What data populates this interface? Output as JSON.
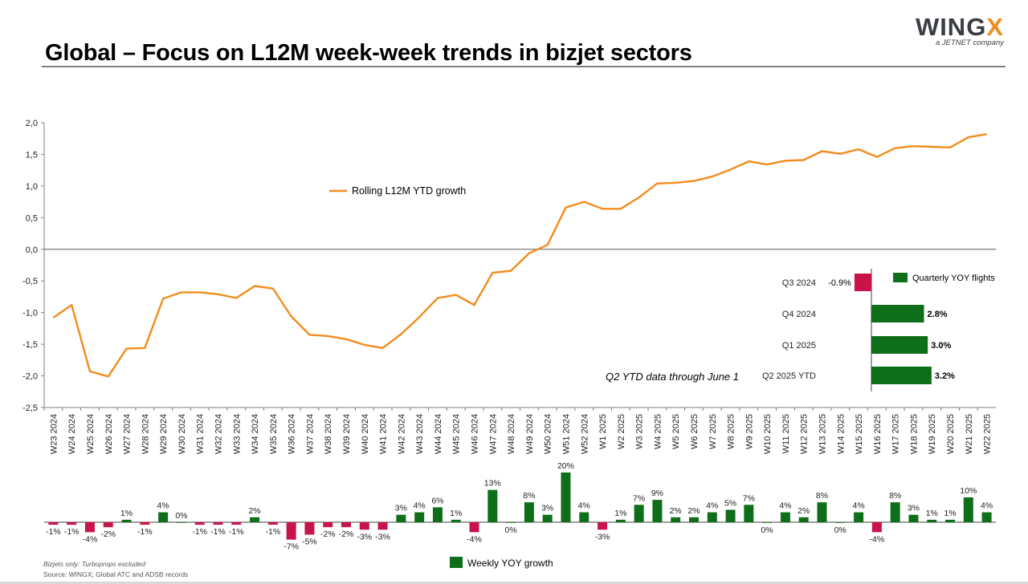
{
  "header": {
    "title": "Global – Focus on L12M week-week trends in bizjet sectors",
    "logo_main": "WINGX",
    "logo_sub": "a JETNET company"
  },
  "footer": {
    "note": "Bizjets only: Turboprops excluded",
    "source": "Source: WINGX; Global ATC and ADSB records"
  },
  "colors": {
    "line": "#f28c1c",
    "positive": "#0f6e1a",
    "negative": "#c8144a",
    "axis": "#7f7f7f"
  },
  "chart_data": [
    {
      "type": "line",
      "legend": "Rolling L12M YTD growth",
      "ylim": [
        -2.5,
        2.0
      ],
      "y_ticks": [
        "2,0",
        "1,5",
        "1,0",
        "0,5",
        "0,0",
        "-0,5",
        "-1,0",
        "-1,5",
        "-2,0",
        "-2,5"
      ],
      "categories": [
        "W23 2024",
        "W24 2024",
        "W25 2024",
        "W26 2024",
        "W27 2024",
        "W28 2024",
        "W29 2024",
        "W30 2024",
        "W31 2024",
        "W32 2024",
        "W33 2024",
        "W34 2024",
        "W35 2024",
        "W36 2024",
        "W37 2024",
        "W38 2024",
        "W39 2024",
        "W40 2024",
        "W41 2024",
        "W42 2024",
        "W43 2024",
        "W44 2024",
        "W45 2024",
        "W46 2024",
        "W47 2024",
        "W48 2024",
        "W49 2024",
        "W50 2024",
        "W51 2024",
        "W52 2024",
        "W1 2025",
        "W2 2025",
        "W3 2025",
        "W4 2025",
        "W5 2025",
        "W6 2025",
        "W7 2025",
        "W8 2025",
        "W9 2025",
        "W10 2025",
        "W11 2025",
        "W12 2025",
        "W13 2025",
        "W14 2025",
        "W15 2025",
        "W16 2025",
        "W17 2025",
        "W18 2025",
        "W19 2025",
        "W20 2025",
        "W21 2025",
        "W22 2025"
      ],
      "values": [
        -1.08,
        -0.88,
        -1.93,
        -2.01,
        -1.57,
        -1.56,
        -0.78,
        -0.68,
        -0.68,
        -0.71,
        -0.77,
        -0.58,
        -0.62,
        -1.06,
        -1.35,
        -1.37,
        -1.42,
        -1.51,
        -1.56,
        -1.34,
        -1.07,
        -0.77,
        -0.72,
        -0.88,
        -0.37,
        -0.34,
        -0.06,
        0.07,
        0.66,
        0.75,
        0.64,
        0.64,
        0.82,
        1.04,
        1.05,
        1.08,
        1.15,
        1.26,
        1.39,
        1.34,
        1.4,
        1.41,
        1.55,
        1.51,
        1.58,
        1.46,
        1.6,
        1.63,
        1.62,
        1.61,
        1.77,
        1.82
      ]
    },
    {
      "type": "bar",
      "legend": "Weekly YOY growth",
      "categories": [
        "W23 2024",
        "W24 2024",
        "W25 2024",
        "W26 2024",
        "W27 2024",
        "W28 2024",
        "W29 2024",
        "W30 2024",
        "W31 2024",
        "W32 2024",
        "W33 2024",
        "W34 2024",
        "W35 2024",
        "W36 2024",
        "W37 2024",
        "W38 2024",
        "W39 2024",
        "W40 2024",
        "W41 2024",
        "W42 2024",
        "W43 2024",
        "W44 2024",
        "W45 2024",
        "W46 2024",
        "W47 2024",
        "W48 2024",
        "W49 2024",
        "W50 2024",
        "W51 2024",
        "W52 2024",
        "W1 2025",
        "W2 2025",
        "W3 2025",
        "W4 2025",
        "W5 2025",
        "W6 2025",
        "W7 2025",
        "W8 2025",
        "W9 2025",
        "W10 2025",
        "W11 2025",
        "W12 2025",
        "W13 2025",
        "W14 2025",
        "W15 2025",
        "W16 2025",
        "W17 2025",
        "W18 2025",
        "W19 2025",
        "W20 2025",
        "W21 2025",
        "W22 2025"
      ],
      "values": [
        -1,
        -1,
        -4,
        -2,
        1,
        -1,
        4,
        0,
        -1,
        -1,
        -1,
        2,
        -1,
        -7,
        -5,
        -2,
        -2,
        -3,
        -3,
        3,
        4,
        6,
        1,
        -4,
        13,
        0,
        8,
        3,
        20,
        4,
        -3,
        1,
        7,
        9,
        2,
        2,
        4,
        5,
        7,
        0,
        4,
        2,
        8,
        0,
        4,
        -4,
        8,
        3,
        1,
        1,
        10,
        4
      ],
      "labels": [
        "-1%",
        "-1%",
        "-4%",
        "-2%",
        "1%",
        "-1%",
        "4%",
        "0%",
        "-1%",
        "-1%",
        "-1%",
        "2%",
        "-1%",
        "-7%",
        "-5%",
        "-2%",
        "-2%",
        "-3%",
        "-3%",
        "3%",
        "4%",
        "6%",
        "1%",
        "-4%",
        "13%",
        "0%",
        "8%",
        "3%",
        "20%",
        "4%",
        "-3%",
        "1%",
        "7%",
        "9%",
        "2%",
        "2%",
        "4%",
        "5%",
        "7%",
        "0%",
        "4%",
        "2%",
        "8%",
        "0%",
        "4%",
        "-4%",
        "8%",
        "3%",
        "1%",
        "1%",
        "10%",
        "4%"
      ]
    },
    {
      "type": "bar",
      "orientation": "horizontal",
      "legend": "Quarterly YOY flights",
      "categories": [
        "Q3 2024",
        "Q4 2024",
        "Q1 2025",
        "Q2 2025 YTD"
      ],
      "values": [
        -0.9,
        2.8,
        3.0,
        3.2
      ],
      "labels": [
        "-0.9%",
        "2.8%",
        "3.0%",
        "3.2%"
      ],
      "annotation": "Q2 YTD data through June 1"
    }
  ]
}
